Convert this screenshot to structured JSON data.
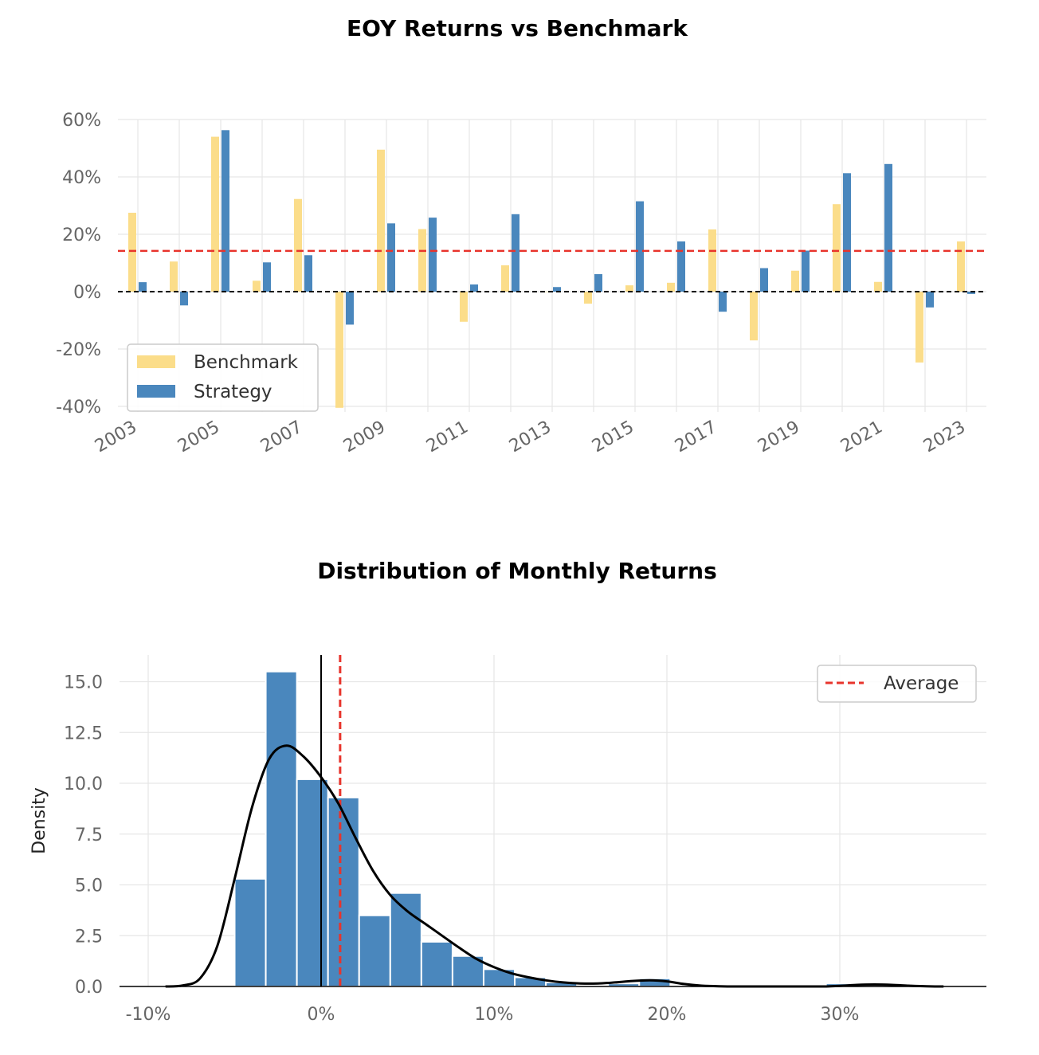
{
  "chart_data": [
    {
      "type": "bar",
      "title": "EOY Returns  vs Benchmark",
      "xlabel": "",
      "ylabel": "",
      "categories": [
        "2003",
        "2004",
        "2005",
        "2006",
        "2007",
        "2008",
        "2009",
        "2010",
        "2011",
        "2012",
        "2013",
        "2014",
        "2015",
        "2016",
        "2017",
        "2018",
        "2019",
        "2020",
        "2021",
        "2022",
        "2023"
      ],
      "xtick_labels": [
        "2003",
        "2005",
        "2007",
        "2009",
        "2011",
        "2013",
        "2015",
        "2017",
        "2019",
        "2021",
        "2023"
      ],
      "series": [
        {
          "name": "Benchmark",
          "color": "#fbdd8a",
          "values": [
            27.5,
            10.5,
            54,
            3.8,
            32.3,
            -40.5,
            49.5,
            21.8,
            -10.5,
            9.2,
            0,
            -4.2,
            2.2,
            3.1,
            21.7,
            -17,
            7.3,
            30.5,
            3.4,
            -24.7,
            17.5
          ]
        },
        {
          "name": "Strategy",
          "color": "#4a87bd",
          "values": [
            3.3,
            -4.8,
            56.3,
            10.2,
            12.7,
            -11.5,
            23.8,
            25.8,
            2.5,
            27,
            1.6,
            6.1,
            31.5,
            17.5,
            -7,
            8.2,
            14.3,
            41.3,
            44.5,
            -5.5,
            -0.8
          ]
        }
      ],
      "ylim": [
        -44,
        64
      ],
      "yticks": [
        -40,
        -20,
        0,
        20,
        40,
        60
      ],
      "ytick_labels": [
        "-40%",
        "-20%",
        "0%",
        "20%",
        "40%",
        "60%"
      ],
      "average_line": 14.2,
      "average_color": "#e8342c",
      "zero_line": 0,
      "grid": true,
      "legend_position": "lower-left"
    },
    {
      "type": "histogram",
      "title": "Distribution of Monthly Returns",
      "xlabel": "",
      "ylabel": "Density",
      "bin_edges": [
        -5,
        -3.2,
        -1.4,
        0.4,
        2.2,
        4.0,
        5.8,
        7.6,
        9.4,
        11.2,
        13.0,
        14.8,
        16.6,
        18.4,
        20.2,
        22.0,
        23.8,
        25.6,
        27.4,
        29.2,
        31.0,
        32.8
      ],
      "density": [
        5.3,
        15.5,
        10.2,
        9.3,
        3.5,
        4.6,
        2.2,
        1.5,
        0.85,
        0.45,
        0.2,
        0.0,
        0.15,
        0.4,
        0.0,
        0.0,
        0.0,
        0.0,
        0.0,
        0.15,
        0.0
      ],
      "bar_color": "#4a87bd",
      "kde": {
        "x": [
          -9,
          -8,
          -7,
          -6,
          -5,
          -4,
          -3,
          -2,
          -1,
          0,
          1,
          2,
          3,
          4,
          5,
          6,
          7,
          8,
          9,
          10,
          11,
          12,
          13,
          14,
          15,
          16,
          17,
          18,
          19,
          20,
          21,
          22,
          23,
          24,
          25,
          26,
          27,
          28,
          29,
          30,
          31,
          32,
          33,
          34,
          35,
          36
        ],
        "y": [
          0,
          0.05,
          0.4,
          2.0,
          5.3,
          8.8,
          11.2,
          11.85,
          11.3,
          10.3,
          9.0,
          7.3,
          5.7,
          4.5,
          3.7,
          3.1,
          2.5,
          1.9,
          1.35,
          0.95,
          0.65,
          0.45,
          0.3,
          0.2,
          0.15,
          0.15,
          0.2,
          0.27,
          0.3,
          0.25,
          0.12,
          0.04,
          0.01,
          0,
          0,
          0,
          0,
          0,
          0,
          0.03,
          0.08,
          0.1,
          0.08,
          0.04,
          0.01,
          0
        ]
      },
      "xlim": [
        -11.5,
        38.5
      ],
      "ylim": [
        0,
        16.3
      ],
      "xticks": [
        -10,
        0,
        10,
        20,
        30
      ],
      "xtick_labels": [
        "-10%",
        "0%",
        "10%",
        "20%",
        "30%"
      ],
      "yticks": [
        0,
        2.5,
        5,
        7.5,
        10,
        12.5,
        15
      ],
      "ytick_labels": [
        "0.0",
        "2.5",
        "5.0",
        "7.5",
        "10.0",
        "12.5",
        "15.0"
      ],
      "average_line": 1.1,
      "average_color": "#e8342c",
      "zero_line": 0,
      "legend": [
        "Average"
      ],
      "legend_position": "top-right",
      "grid": true
    }
  ]
}
